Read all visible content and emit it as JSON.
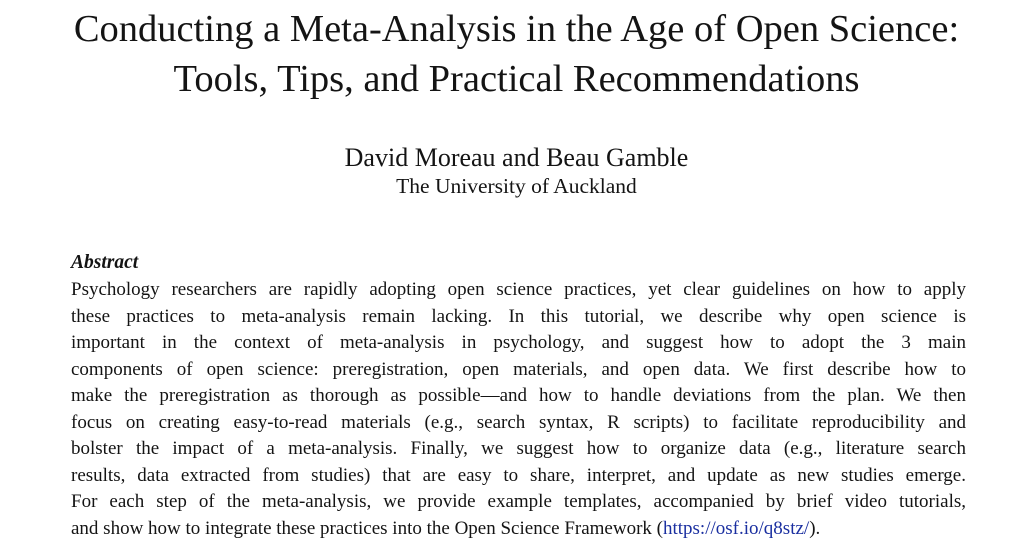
{
  "paper": {
    "title_line1": "Conducting a Meta-Analysis in the Age of Open Science:",
    "title_line2": "Tools, Tips, and Practical Recommendations",
    "authors": "David Moreau and Beau Gamble",
    "affiliation": "The University of Auckland"
  },
  "abstract": {
    "heading": "Abstract",
    "lines": [
      "Psychology researchers are rapidly adopting open science practices, yet clear guidelines on how to apply",
      "these practices to meta-analysis remain lacking. In this tutorial, we describe why open science is",
      "important in the context of meta-analysis in psychology, and suggest how to adopt the 3 main",
      "components of open science: preregistration, open materials, and open data. We first describe how to",
      "make the preregistration as thorough as possible—and how to handle deviations from the plan. We then",
      "focus on creating easy-to-read materials (e.g., search syntax, R scripts) to facilitate reproducibility and",
      "bolster the impact of a meta-analysis. Finally, we suggest how to organize data (e.g., literature search",
      "results, data extracted from studies) that are easy to share, interpret, and update as new studies emerge.",
      "For each step of the meta-analysis, we provide example templates, accompanied by brief video tutorials,"
    ],
    "last_line_prefix": "and show how to integrate these practices into the Open Science Framework (",
    "link_text": "https://osf.io/q8stz/",
    "last_line_suffix": ")."
  }
}
